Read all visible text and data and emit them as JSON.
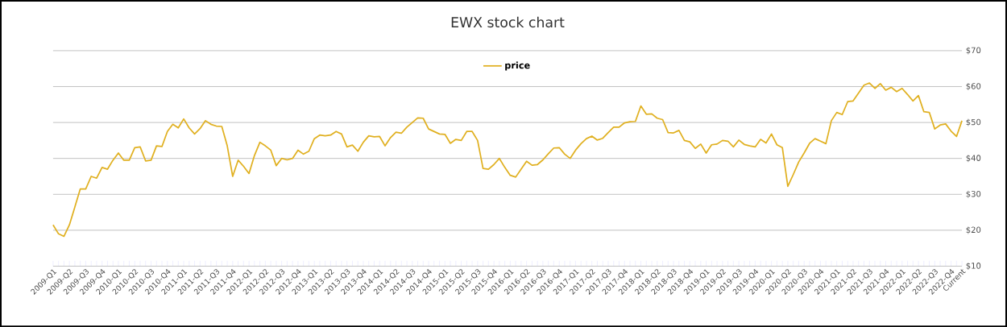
{
  "chart_data": {
    "type": "line",
    "title": "EWX stock chart",
    "categories": [
      "2009-Q1",
      null,
      null,
      "2009-Q2",
      null,
      null,
      "2009-Q3",
      null,
      null,
      "2009-Q4",
      null,
      null,
      "2010-Q1",
      null,
      null,
      "2010-Q2",
      null,
      null,
      "2010-Q3",
      null,
      null,
      "2010-Q4",
      null,
      null,
      "2011-Q1",
      null,
      null,
      "2011-Q2",
      null,
      null,
      "2011-Q3",
      null,
      null,
      "2011-Q4",
      null,
      null,
      "2012-Q1",
      null,
      null,
      "2012-Q2",
      null,
      null,
      "2012-Q3",
      null,
      null,
      "2012-Q4",
      null,
      null,
      "2013-Q1",
      null,
      null,
      "2013-Q2",
      null,
      null,
      "2013-Q3",
      null,
      null,
      "2013-Q4",
      null,
      null,
      "2014-Q1",
      null,
      null,
      "2014-Q2",
      null,
      null,
      "2014-Q3",
      null,
      null,
      "2014-Q4",
      null,
      null,
      "2015-Q1",
      null,
      null,
      "2015-Q2",
      null,
      null,
      "2015-Q3",
      null,
      null,
      "2015-Q4",
      null,
      null,
      "2016-Q1",
      null,
      null,
      "2016-Q2",
      null,
      null,
      "2016-Q3",
      null,
      null,
      "2016-Q4",
      null,
      null,
      "2017-Q1",
      null,
      null,
      "2017-Q2",
      null,
      null,
      "2017-Q3",
      null,
      null,
      "2017-Q4",
      null,
      null,
      "2018-Q1",
      null,
      null,
      "2018-Q2",
      null,
      null,
      "2018-Q3",
      null,
      null,
      "2018-Q4",
      null,
      null,
      "2019-Q1",
      null,
      null,
      "2019-Q2",
      null,
      null,
      "2019-Q3",
      null,
      null,
      "2019-Q4",
      null,
      null,
      "2020-Q1",
      null,
      null,
      "2020-Q2",
      null,
      null,
      "2020-Q3",
      null,
      null,
      "2020-Q4",
      null,
      null,
      "2021-Q1",
      null,
      null,
      "2021-Q2",
      null,
      null,
      "2021-Q3",
      null,
      null,
      "2021-Q4",
      null,
      null,
      "2022-Q1",
      null,
      null,
      "2022-Q2",
      null,
      null,
      "2022-Q3",
      null,
      null,
      "2022-Q4",
      null,
      "Current"
    ],
    "series": [
      {
        "name": "price",
        "color": "#e0b020",
        "values": [
          21.5,
          19,
          18.3,
          21.5,
          26.5,
          31.5,
          31.5,
          35,
          34.5,
          37.5,
          37,
          39.5,
          41.5,
          39.5,
          39.5,
          43,
          43.2,
          39.3,
          39.5,
          43.5,
          43.3,
          47.5,
          49.5,
          48.5,
          51,
          48.5,
          46.8,
          48.3,
          50.5,
          49.5,
          49,
          48.9,
          43.5,
          35,
          39.5,
          37.8,
          35.8,
          40.8,
          44.5,
          43.5,
          42.3,
          38,
          40,
          39.6,
          40,
          42.3,
          41.2,
          42,
          45.5,
          46.5,
          46.3,
          46.5,
          47.5,
          46.8,
          43.2,
          43.7,
          42,
          44.5,
          46.3,
          46,
          46.1,
          43.5,
          45.8,
          47.3,
          47,
          48.7,
          50,
          51.3,
          51.2,
          48.2,
          47.5,
          46.8,
          46.7,
          44.2,
          45.3,
          45,
          47.5,
          47.5,
          45,
          37.2,
          37,
          38.3,
          40,
          37.5,
          35.3,
          34.8,
          37,
          39.2,
          38.1,
          38.3,
          39.6,
          41.3,
          42.9,
          43,
          41.2,
          40,
          42.3,
          44.1,
          45.5,
          46.2,
          45.1,
          45.6,
          47.2,
          48.7,
          48.7,
          49.9,
          50.2,
          50.3,
          54.6,
          52.3,
          52.4,
          51.2,
          50.8,
          47.2,
          47.1,
          47.8,
          45,
          44.6,
          42.8,
          44,
          41.5,
          43.8,
          44,
          45,
          44.8,
          43.2,
          45.1,
          43.9,
          43.5,
          43.2,
          45.3,
          44.3,
          46.8,
          43.8,
          43,
          32.2,
          35.5,
          39,
          41.5,
          44.2,
          45.5,
          44.8,
          44.1,
          50.5,
          52.8,
          52.2,
          55.8,
          56,
          58.2,
          60.4,
          61,
          59.5,
          60.8,
          59,
          59.8,
          58.6,
          59.5,
          57.8,
          56,
          57.5,
          53,
          52.8,
          48.2,
          49.3,
          49.6,
          47.6,
          46.1,
          50.5
        ]
      }
    ],
    "ylim": [
      10,
      70
    ],
    "yticks": [
      {
        "value": 10,
        "label": "$10"
      },
      {
        "value": 20,
        "label": "$20"
      },
      {
        "value": 30,
        "label": "$30"
      },
      {
        "value": 40,
        "label": "$40"
      },
      {
        "value": 50,
        "label": "$50"
      },
      {
        "value": 60,
        "label": "$60"
      },
      {
        "value": 70,
        "label": "$70"
      }
    ],
    "grid": "y",
    "legend": "top",
    "marker": "none",
    "line_style": "solid"
  }
}
